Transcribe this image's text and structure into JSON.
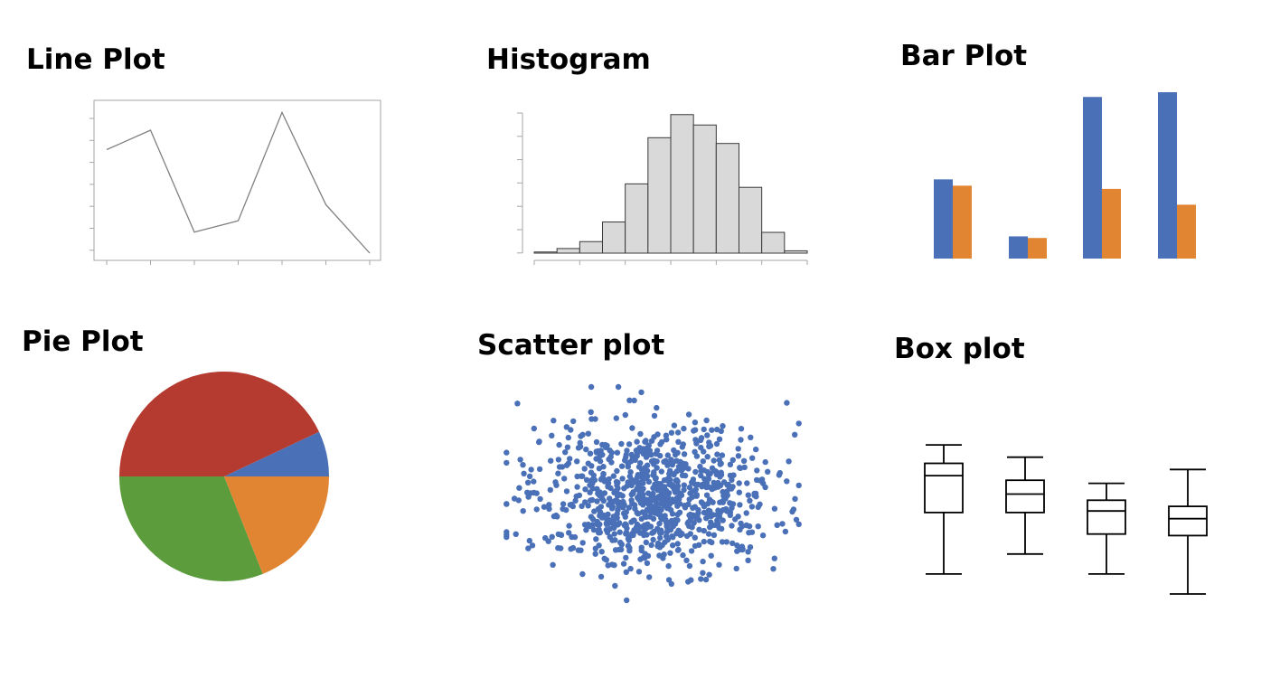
{
  "colors": {
    "blue": "#4a70b8",
    "orange": "#e18533",
    "green": "#5c9c3d",
    "red": "#b53b30",
    "hist_fill": "#d9d9d9",
    "line_stroke": "#808080",
    "axis": "#a6a6a6",
    "box_stroke": "#000000"
  },
  "chart_data": [
    {
      "id": "line",
      "type": "line",
      "title": "Line Plot",
      "x": [
        1,
        2,
        3,
        4,
        5,
        6,
        7
      ],
      "values": [
        6.4,
        7.6,
        1.3,
        2.0,
        8.7,
        3.0,
        0.0
      ],
      "ylim": [
        0,
        9
      ],
      "xlabel": "",
      "ylabel": "",
      "grid": false,
      "tick_labels": false
    },
    {
      "id": "histogram",
      "type": "bar",
      "title": "Histogram",
      "subtype": "histogram",
      "bins": 12,
      "counts": [
        1,
        4,
        10,
        27,
        60,
        100,
        120,
        111,
        95,
        57,
        18,
        2
      ],
      "ylim": [
        0,
        130
      ],
      "xlabel": "",
      "ylabel": "",
      "grid": false,
      "tick_labels": false
    },
    {
      "id": "bar",
      "type": "bar",
      "title": "Bar Plot",
      "categories": [
        "1",
        "2",
        "3",
        "4"
      ],
      "series": [
        {
          "color": "blue",
          "values": [
            50,
            14,
            102,
            105
          ]
        },
        {
          "color": "orange",
          "values": [
            46,
            13,
            44,
            34
          ]
        }
      ],
      "ylim": [
        0,
        105
      ],
      "axes": false,
      "legend": false
    },
    {
      "id": "pie",
      "type": "pie",
      "title": "Pie Plot",
      "slices": [
        {
          "color": "blue",
          "value": 7
        },
        {
          "color": "red",
          "value": 43
        },
        {
          "color": "green",
          "value": 31
        },
        {
          "color": "orange",
          "value": 19
        }
      ],
      "start_angle_deg": 0,
      "direction": "counterclockwise-from-right",
      "legend": false
    },
    {
      "id": "scatter",
      "type": "scatter",
      "title": "Scatter plot",
      "distribution": "bivariate normal cloud",
      "n_points": 900,
      "center": [
        0,
        0
      ],
      "sd": [
        1.0,
        1.0
      ],
      "color": "blue",
      "axes": false
    },
    {
      "id": "box",
      "type": "box",
      "title": "Box plot",
      "axes": false,
      "ylim": [
        0,
        10
      ],
      "boxes": [
        {
          "min": 1.3,
          "q1": 5.3,
          "median": 7.7,
          "q3": 8.5,
          "max": 9.7
        },
        {
          "min": 2.6,
          "q1": 5.3,
          "median": 6.5,
          "q3": 7.4,
          "max": 8.9
        },
        {
          "min": 1.3,
          "q1": 3.9,
          "median": 5.4,
          "q3": 6.1,
          "max": 7.2
        },
        {
          "min": 0.0,
          "q1": 3.8,
          "median": 4.9,
          "q3": 5.7,
          "max": 8.1
        }
      ]
    }
  ]
}
